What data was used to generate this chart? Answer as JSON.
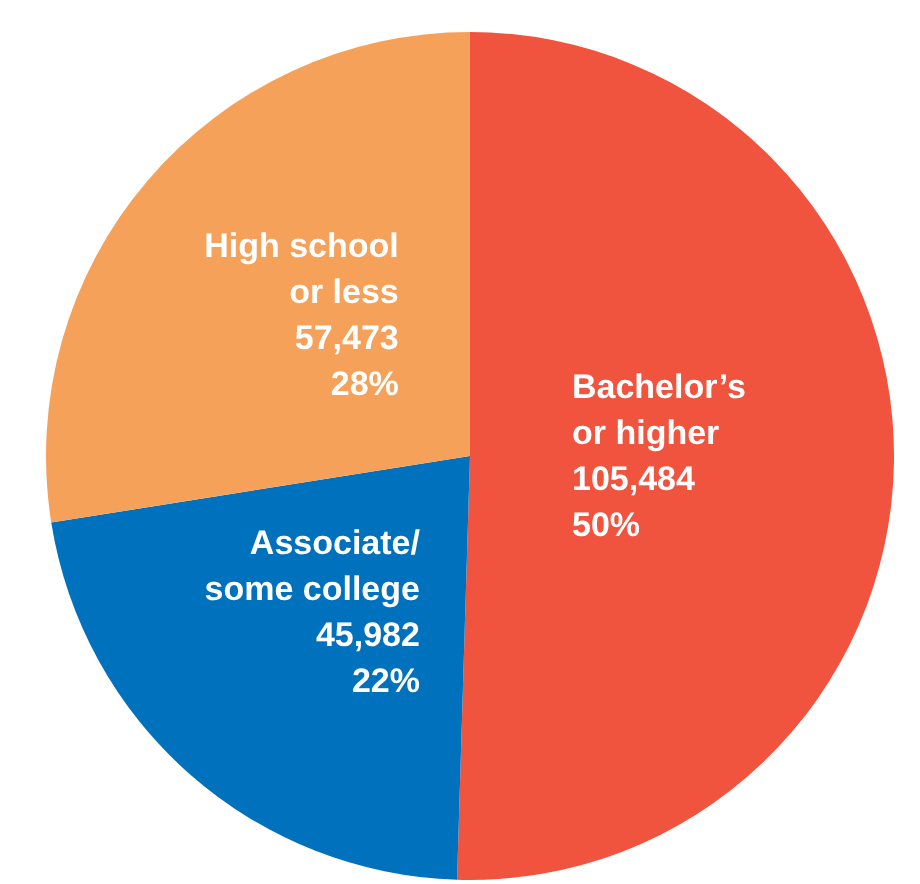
{
  "chart_data": {
    "type": "pie",
    "categories": [
      "Bachelor’s\nor higher",
      "Associate/\nsome college",
      "High school\nor less"
    ],
    "values": [
      105484,
      45982,
      57473
    ],
    "value_labels": [
      "105,484\n50%",
      "45,982\n22%",
      "57,473\n28%"
    ],
    "colors": [
      "#f0533e",
      "#0071bc",
      "#f6a15a"
    ]
  }
}
